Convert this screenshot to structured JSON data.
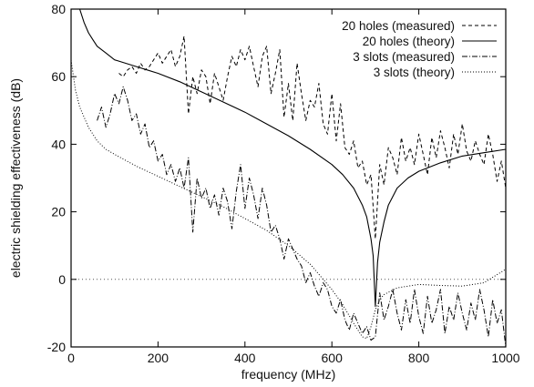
{
  "chart_data": {
    "type": "line",
    "xlabel": "frequency (MHz)",
    "ylabel": "electric shielding effectiveness (dB)",
    "xlim": [
      0,
      1000
    ],
    "ylim": [
      -20,
      80
    ],
    "xticks": [
      "0",
      "200",
      "400",
      "600",
      "800",
      "1000"
    ],
    "yticks": [
      "-20",
      "0",
      "20",
      "40",
      "60",
      "80"
    ],
    "grid": false,
    "legend_position": "top-right",
    "zero_reference_line": true,
    "series": [
      {
        "name": "20 holes (measured)",
        "style": "dashed",
        "color": "#000000",
        "x": [
          110,
          120,
          130,
          140,
          150,
          160,
          170,
          180,
          190,
          200,
          210,
          220,
          230,
          240,
          250,
          260,
          270,
          280,
          290,
          300,
          310,
          320,
          330,
          340,
          350,
          360,
          370,
          380,
          390,
          400,
          410,
          420,
          430,
          440,
          450,
          460,
          470,
          480,
          490,
          500,
          510,
          520,
          530,
          540,
          550,
          560,
          570,
          580,
          590,
          600,
          610,
          620,
          630,
          640,
          650,
          660,
          670,
          680,
          690,
          700,
          710,
          720,
          730,
          740,
          750,
          760,
          770,
          780,
          790,
          800,
          810,
          820,
          830,
          840,
          850,
          860,
          870,
          880,
          890,
          900,
          910,
          920,
          930,
          940,
          950,
          960,
          970,
          980,
          990,
          1000
        ],
        "y": [
          61,
          60,
          62,
          63,
          61,
          64,
          62,
          63,
          65,
          67,
          64,
          66,
          68,
          63,
          66,
          72,
          49,
          60,
          55,
          62,
          60,
          52,
          61,
          57,
          53,
          60,
          66,
          63,
          68,
          65,
          69,
          63,
          57,
          66,
          69,
          55,
          61,
          68,
          48,
          58,
          47,
          64,
          55,
          47,
          53,
          51,
          58,
          46,
          43,
          55,
          41,
          52,
          39,
          37,
          41,
          33,
          35,
          28,
          31,
          12,
          34,
          28,
          39,
          36,
          31,
          42,
          35,
          39,
          34,
          43,
          37,
          31,
          42,
          36,
          44,
          39,
          33,
          43,
          37,
          46,
          38,
          35,
          41,
          37,
          34,
          43,
          37,
          29,
          35,
          27
        ]
      },
      {
        "name": "20 holes (theory)",
        "style": "solid",
        "color": "#000000",
        "x": [
          20,
          30,
          40,
          50,
          60,
          80,
          100,
          125,
          150,
          175,
          200,
          250,
          300,
          350,
          400,
          450,
          500,
          550,
          600,
          625,
          650,
          670,
          680,
          690,
          695,
          700,
          705,
          710,
          720,
          730,
          750,
          775,
          800,
          850,
          900,
          950,
          1000
        ],
        "y": [
          80,
          76,
          73,
          71,
          69,
          67,
          65,
          64,
          63,
          62,
          61,
          58.5,
          55.5,
          52.5,
          49.5,
          46,
          42.5,
          38.5,
          34,
          31,
          27,
          22,
          18.5,
          12,
          7,
          -8,
          5,
          11,
          17,
          22,
          27,
          30,
          32,
          34.5,
          36.5,
          37.5,
          38.5
        ]
      },
      {
        "name": "3 slots (measured)",
        "style": "dash-dot",
        "color": "#000000",
        "x": [
          60,
          70,
          80,
          90,
          100,
          110,
          120,
          130,
          140,
          150,
          160,
          170,
          180,
          190,
          200,
          210,
          220,
          230,
          240,
          250,
          260,
          270,
          280,
          290,
          300,
          310,
          320,
          330,
          340,
          350,
          360,
          370,
          380,
          390,
          400,
          410,
          420,
          430,
          440,
          450,
          460,
          470,
          480,
          490,
          500,
          510,
          520,
          530,
          540,
          550,
          560,
          570,
          580,
          590,
          600,
          610,
          620,
          630,
          640,
          650,
          660,
          670,
          680,
          690,
          700,
          710,
          720,
          730,
          740,
          750,
          760,
          770,
          780,
          790,
          800,
          810,
          820,
          830,
          840,
          850,
          860,
          870,
          880,
          890,
          900,
          910,
          920,
          930,
          940,
          950,
          960,
          970,
          980,
          990,
          1000
        ],
        "y": [
          47,
          51,
          45,
          49,
          55,
          52,
          57,
          53,
          47,
          49,
          43,
          46,
          39,
          41,
          35,
          37,
          31,
          34,
          29,
          33,
          27,
          36,
          14,
          30,
          24,
          27,
          21,
          25,
          19,
          27,
          23,
          15,
          26,
          34,
          21,
          30,
          25,
          18,
          27,
          22,
          14,
          16,
          12,
          6,
          12,
          9,
          6,
          4,
          -1,
          2,
          -2,
          -5,
          -1,
          -3,
          -8,
          -10,
          -6,
          -12,
          -15,
          -10,
          -13,
          -16,
          -14,
          -18,
          -17,
          -4,
          -12,
          -8,
          -3,
          -10,
          -15,
          -6,
          -13,
          -3,
          -11,
          -16,
          -5,
          -13,
          -9,
          -3,
          -16,
          -8,
          -12,
          -4,
          -10,
          -15,
          -7,
          -12,
          -3,
          -9,
          -17,
          -6,
          -13,
          -9,
          -20
        ]
      },
      {
        "name": "3 slots (theory)",
        "style": "dotted",
        "color": "#000000",
        "x": [
          0,
          10,
          20,
          30,
          40,
          60,
          80,
          100,
          150,
          200,
          250,
          300,
          350,
          400,
          450,
          500,
          550,
          600,
          625,
          650,
          670,
          680,
          690,
          700,
          710,
          720,
          750,
          800,
          850,
          900,
          950,
          1000
        ],
        "y": [
          65,
          56,
          51,
          48,
          45,
          41,
          38.5,
          37,
          33.5,
          30.5,
          27.5,
          24.5,
          21.5,
          18,
          14.5,
          10,
          4.5,
          -3,
          -7.5,
          -13,
          -17,
          -17.5,
          -14,
          -9,
          -6,
          -4.5,
          -2.5,
          -1.5,
          -1.8,
          -2,
          -1,
          3
        ]
      }
    ]
  }
}
